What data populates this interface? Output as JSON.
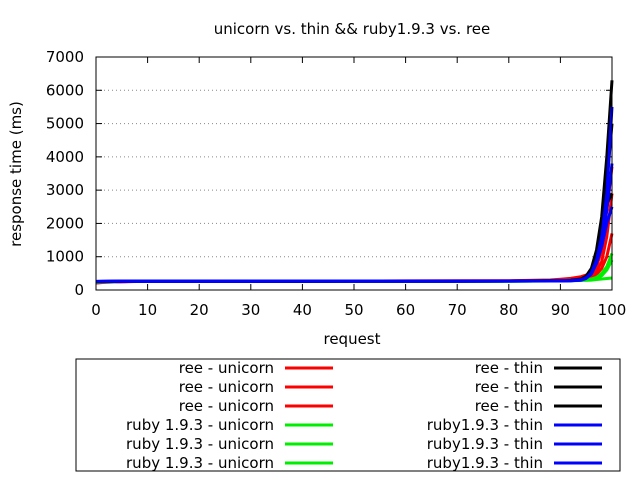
{
  "chart_data": {
    "type": "line",
    "title": "unicorn vs. thin && ruby1.9.3 vs. ree",
    "xlabel": "request",
    "ylabel": "response time (ms)",
    "xlim": [
      0,
      100
    ],
    "ylim": [
      0,
      7000
    ],
    "xticks": [
      "0",
      "10",
      "20",
      "30",
      "40",
      "50",
      "60",
      "70",
      "80",
      "90",
      "100"
    ],
    "yticks": [
      "0",
      "1000",
      "2000",
      "3000",
      "4000",
      "5000",
      "6000",
      "7000"
    ],
    "grid": true,
    "legend_position": "below",
    "series": [
      {
        "name": "ree - unicorn",
        "color": "#ff0000",
        "x": [
          0,
          2,
          5,
          10,
          20,
          30,
          40,
          50,
          60,
          70,
          80,
          85,
          88,
          90,
          92,
          94,
          96,
          97,
          98,
          99,
          100
        ],
        "y": [
          210,
          230,
          250,
          260,
          262,
          265,
          268,
          270,
          272,
          275,
          280,
          290,
          300,
          320,
          350,
          400,
          500,
          700,
          1200,
          2400,
          3700
        ]
      },
      {
        "name": "ree - unicorn",
        "color": "#ff0000",
        "x": [
          0,
          2,
          5,
          10,
          20,
          30,
          40,
          50,
          60,
          70,
          80,
          85,
          88,
          90,
          92,
          94,
          96,
          97,
          98,
          99,
          100
        ],
        "y": [
          215,
          235,
          250,
          258,
          260,
          262,
          265,
          266,
          268,
          270,
          274,
          282,
          292,
          305,
          325,
          360,
          430,
          560,
          850,
          1600,
          2900
        ]
      },
      {
        "name": "ree - unicorn",
        "color": "#ff0000",
        "x": [
          0,
          2,
          5,
          10,
          20,
          30,
          40,
          50,
          60,
          70,
          80,
          85,
          88,
          90,
          92,
          94,
          96,
          97,
          98,
          99,
          100
        ],
        "y": [
          220,
          238,
          252,
          258,
          259,
          260,
          262,
          263,
          265,
          267,
          270,
          276,
          284,
          295,
          310,
          335,
          380,
          470,
          650,
          1000,
          1700
        ]
      },
      {
        "name": "ruby 1.9.3 - unicorn",
        "color": "#00ee00",
        "x": [
          0,
          2,
          5,
          10,
          20,
          30,
          40,
          50,
          60,
          70,
          80,
          85,
          88,
          90,
          92,
          94,
          96,
          97,
          98,
          99,
          100
        ],
        "y": [
          230,
          245,
          255,
          260,
          262,
          262,
          263,
          264,
          265,
          266,
          268,
          272,
          276,
          282,
          290,
          305,
          330,
          380,
          500,
          700,
          1100
        ]
      },
      {
        "name": "ruby 1.9.3 - unicorn",
        "color": "#00ee00",
        "x": [
          0,
          2,
          5,
          10,
          20,
          30,
          40,
          50,
          60,
          70,
          80,
          85,
          88,
          90,
          92,
          94,
          96,
          97,
          98,
          99,
          100
        ],
        "y": [
          235,
          248,
          256,
          260,
          261,
          262,
          262,
          263,
          264,
          265,
          267,
          270,
          274,
          278,
          285,
          295,
          315,
          350,
          430,
          600,
          900
        ]
      },
      {
        "name": "ruby 1.9.3 - unicorn",
        "color": "#00ee00",
        "x": [
          0,
          2,
          5,
          10,
          20,
          30,
          40,
          50,
          60,
          70,
          80,
          85,
          88,
          90,
          92,
          94,
          96,
          97,
          98,
          99,
          100
        ],
        "y": [
          240,
          250,
          256,
          259,
          260,
          261,
          261,
          262,
          263,
          264,
          265,
          267,
          270,
          273,
          278,
          285,
          298,
          315,
          330,
          345,
          360
        ]
      },
      {
        "name": "ree - thin",
        "color": "#000000",
        "x": [
          0,
          2,
          5,
          10,
          20,
          30,
          40,
          50,
          60,
          70,
          80,
          85,
          88,
          90,
          92,
          94,
          95,
          96,
          97,
          98,
          99,
          100
        ],
        "y": [
          250,
          255,
          260,
          262,
          263,
          264,
          265,
          266,
          267,
          268,
          270,
          272,
          275,
          280,
          290,
          330,
          420,
          650,
          1200,
          2200,
          4000,
          6300
        ]
      },
      {
        "name": "ree - thin",
        "color": "#000000",
        "x": [
          0,
          2,
          5,
          10,
          20,
          30,
          40,
          50,
          60,
          70,
          80,
          85,
          88,
          90,
          92,
          94,
          95,
          96,
          97,
          98,
          99,
          100
        ],
        "y": [
          252,
          256,
          260,
          262,
          263,
          264,
          265,
          266,
          267,
          268,
          270,
          272,
          274,
          278,
          288,
          320,
          400,
          600,
          1100,
          1900,
          3200,
          5000
        ]
      },
      {
        "name": "ree - thin",
        "color": "#000000",
        "x": [
          0,
          2,
          5,
          10,
          20,
          30,
          40,
          50,
          60,
          70,
          80,
          85,
          88,
          90,
          92,
          94,
          95,
          96,
          97,
          98,
          99,
          100
        ],
        "y": [
          254,
          257,
          261,
          262,
          263,
          264,
          265,
          266,
          267,
          268,
          269,
          271,
          273,
          277,
          285,
          310,
          380,
          560,
          1000,
          1700,
          2600,
          2900
        ]
      },
      {
        "name": "ruby1.9.3 - thin",
        "color": "#0000ff",
        "x": [
          0,
          2,
          5,
          10,
          20,
          30,
          40,
          50,
          60,
          70,
          80,
          85,
          88,
          90,
          92,
          94,
          95,
          96,
          97,
          98,
          99,
          100
        ],
        "y": [
          255,
          258,
          262,
          264,
          265,
          266,
          266,
          267,
          268,
          268,
          269,
          270,
          272,
          275,
          282,
          305,
          370,
          520,
          900,
          1600,
          2900,
          5500
        ]
      },
      {
        "name": "ruby1.9.3 - thin",
        "color": "#0000ff",
        "x": [
          0,
          2,
          5,
          10,
          20,
          30,
          40,
          50,
          60,
          70,
          80,
          85,
          88,
          90,
          92,
          94,
          95,
          96,
          97,
          98,
          99,
          100
        ],
        "y": [
          256,
          259,
          262,
          264,
          265,
          265,
          266,
          267,
          267,
          268,
          268,
          269,
          271,
          274,
          280,
          300,
          360,
          500,
          850,
          1450,
          2400,
          3800
        ]
      },
      {
        "name": "ruby1.9.3 - thin",
        "color": "#0000ff",
        "x": [
          0,
          2,
          5,
          10,
          20,
          30,
          40,
          50,
          60,
          70,
          80,
          85,
          88,
          90,
          92,
          94,
          95,
          96,
          97,
          98,
          99,
          100
        ],
        "y": [
          257,
          260,
          263,
          264,
          265,
          265,
          266,
          266,
          267,
          267,
          268,
          269,
          270,
          273,
          278,
          295,
          350,
          480,
          800,
          1300,
          2000,
          2500
        ]
      }
    ]
  }
}
